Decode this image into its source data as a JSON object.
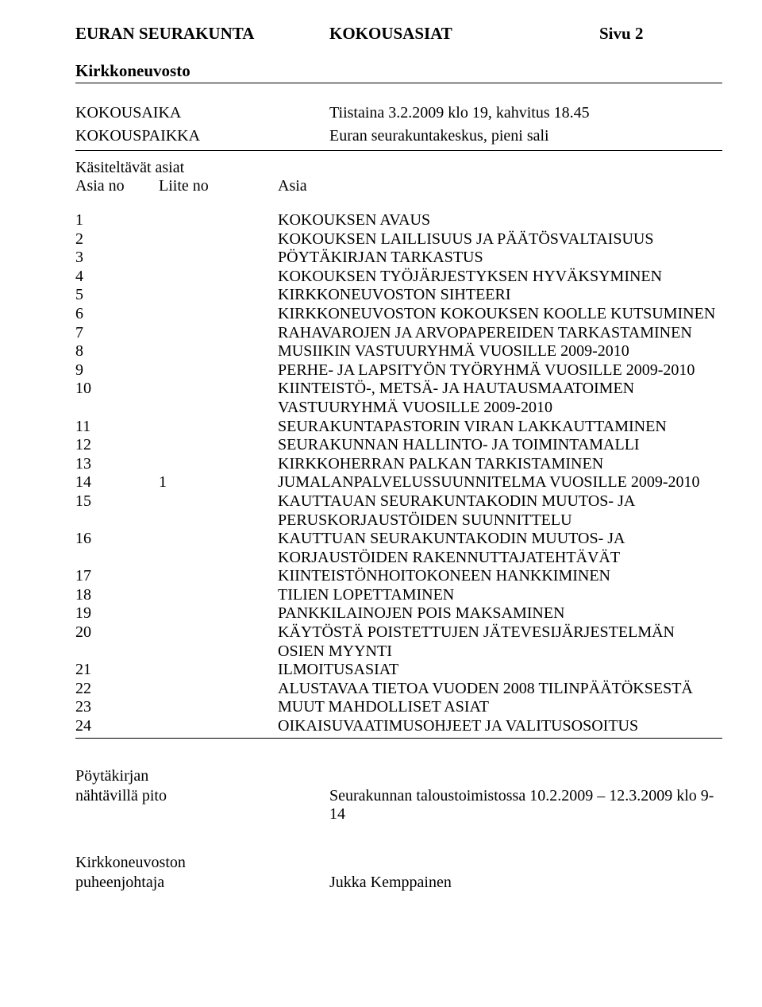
{
  "header": {
    "left": "EURAN SEURAKUNTA",
    "mid": "KOKOUSASIAT",
    "right": "Sivu 2",
    "sub": "Kirkkoneuvosto"
  },
  "meta": {
    "aika_label": "KOKOUSAIKA",
    "aika_value": "Tiistaina 3.2.2009 klo 19, kahvitus 18.45",
    "paikka_label": "KOKOUSPAIKKA",
    "paikka_value": "Euran seurakuntakeskus, pieni sali"
  },
  "legend": {
    "title": "Käsiteltävät asiat",
    "col1": "Asia no",
    "col2": "Liite no",
    "col3": "Asia"
  },
  "items": [
    {
      "no": "1",
      "liite": "",
      "text": "KOKOUKSEN AVAUS"
    },
    {
      "no": "2",
      "liite": "",
      "text": "KOKOUKSEN LAILLISUUS JA PÄÄTÖSVALTAISUUS"
    },
    {
      "no": "3",
      "liite": "",
      "text": "PÖYTÄKIRJAN TARKASTUS"
    },
    {
      "no": "4",
      "liite": "",
      "text": "KOKOUKSEN TYÖJÄRJESTYKSEN HYVÄKSYMINEN"
    },
    {
      "no": "5",
      "liite": "",
      "text": "KIRKKONEUVOSTON SIHTEERI"
    },
    {
      "no": "6",
      "liite": "",
      "text": "KIRKKONEUVOSTON KOKOUKSEN KOOLLE KUTSUMINEN"
    },
    {
      "no": "7",
      "liite": "",
      "text": "RAHAVAROJEN JA ARVOPAPEREIDEN TARKASTAMINEN"
    },
    {
      "no": "8",
      "liite": "",
      "text": "MUSIIKIN VASTUURYHMÄ VUOSILLE 2009-2010"
    },
    {
      "no": "9",
      "liite": "",
      "text": "PERHE- JA LAPSITYÖN TYÖRYHMÄ VUOSILLE 2009-2010"
    },
    {
      "no": "10",
      "liite": "",
      "text": "KIINTEISTÖ-, METSÄ- JA HAUTAUSMAATOIMEN VASTUURYHMÄ VUOSILLE 2009-2010"
    },
    {
      "no": "11",
      "liite": "",
      "text": "SEURAKUNTAPASTORIN VIRAN LAKKAUTTAMINEN"
    },
    {
      "no": "12",
      "liite": "",
      "text": "SEURAKUNNAN HALLINTO- JA TOIMINTAMALLI"
    },
    {
      "no": "13",
      "liite": "",
      "text": "KIRKKOHERRAN PALKAN TARKISTAMINEN"
    },
    {
      "no": "14",
      "liite": "1",
      "text": "JUMALANPALVELUSSUUNNITELMA VUOSILLE 2009-2010"
    },
    {
      "no": "15",
      "liite": "",
      "text": "KAUTTAUAN SEURAKUNTAKODIN MUUTOS- JA PERUSKORJAUSTÖIDEN SUUNNITTELU"
    },
    {
      "no": "16",
      "liite": "",
      "text": "KAUTTUAN SEURAKUNTAKODIN MUUTOS- JA KORJAUSTÖIDEN RAKENNUTTAJATEHTÄVÄT"
    },
    {
      "no": "17",
      "liite": "",
      "text": "KIINTEISTÖNHOITOKONEEN HANKKIMINEN"
    },
    {
      "no": "18",
      "liite": "",
      "text": "TILIEN LOPETTAMINEN"
    },
    {
      "no": "19",
      "liite": "",
      "text": "PANKKILAINOJEN POIS MAKSAMINEN"
    },
    {
      "no": "20",
      "liite": "",
      "text": "KÄYTÖSTÄ POISTETTUJEN JÄTEVESIJÄRJESTELMÄN OSIEN MYYNTI"
    },
    {
      "no": "21",
      "liite": "",
      "text": "ILMOITUSASIAT"
    },
    {
      "no": "22",
      "liite": "",
      "text": "ALUSTAVAA TIETOA VUODEN 2008 TILINPÄÄTÖKSESTÄ"
    },
    {
      "no": "23",
      "liite": "",
      "text": "MUUT MAHDOLLISET ASIAT"
    },
    {
      "no": "24",
      "liite": "",
      "text": "OIKAISUVAATIMUSOHJEET JA VALITUSOSOITUS"
    }
  ],
  "footer": {
    "poytakirja_l1": "Pöytäkirjan",
    "poytakirja_l2": "nähtävillä pito",
    "poytakirja_val": "Seurakunnan taloustoimistossa 10.2.2009 – 12.3.2009 klo 9-14",
    "pj_l1": "Kirkkoneuvoston",
    "pj_l2": "puheenjohtaja",
    "pj_val": "Jukka Kemppainen"
  }
}
